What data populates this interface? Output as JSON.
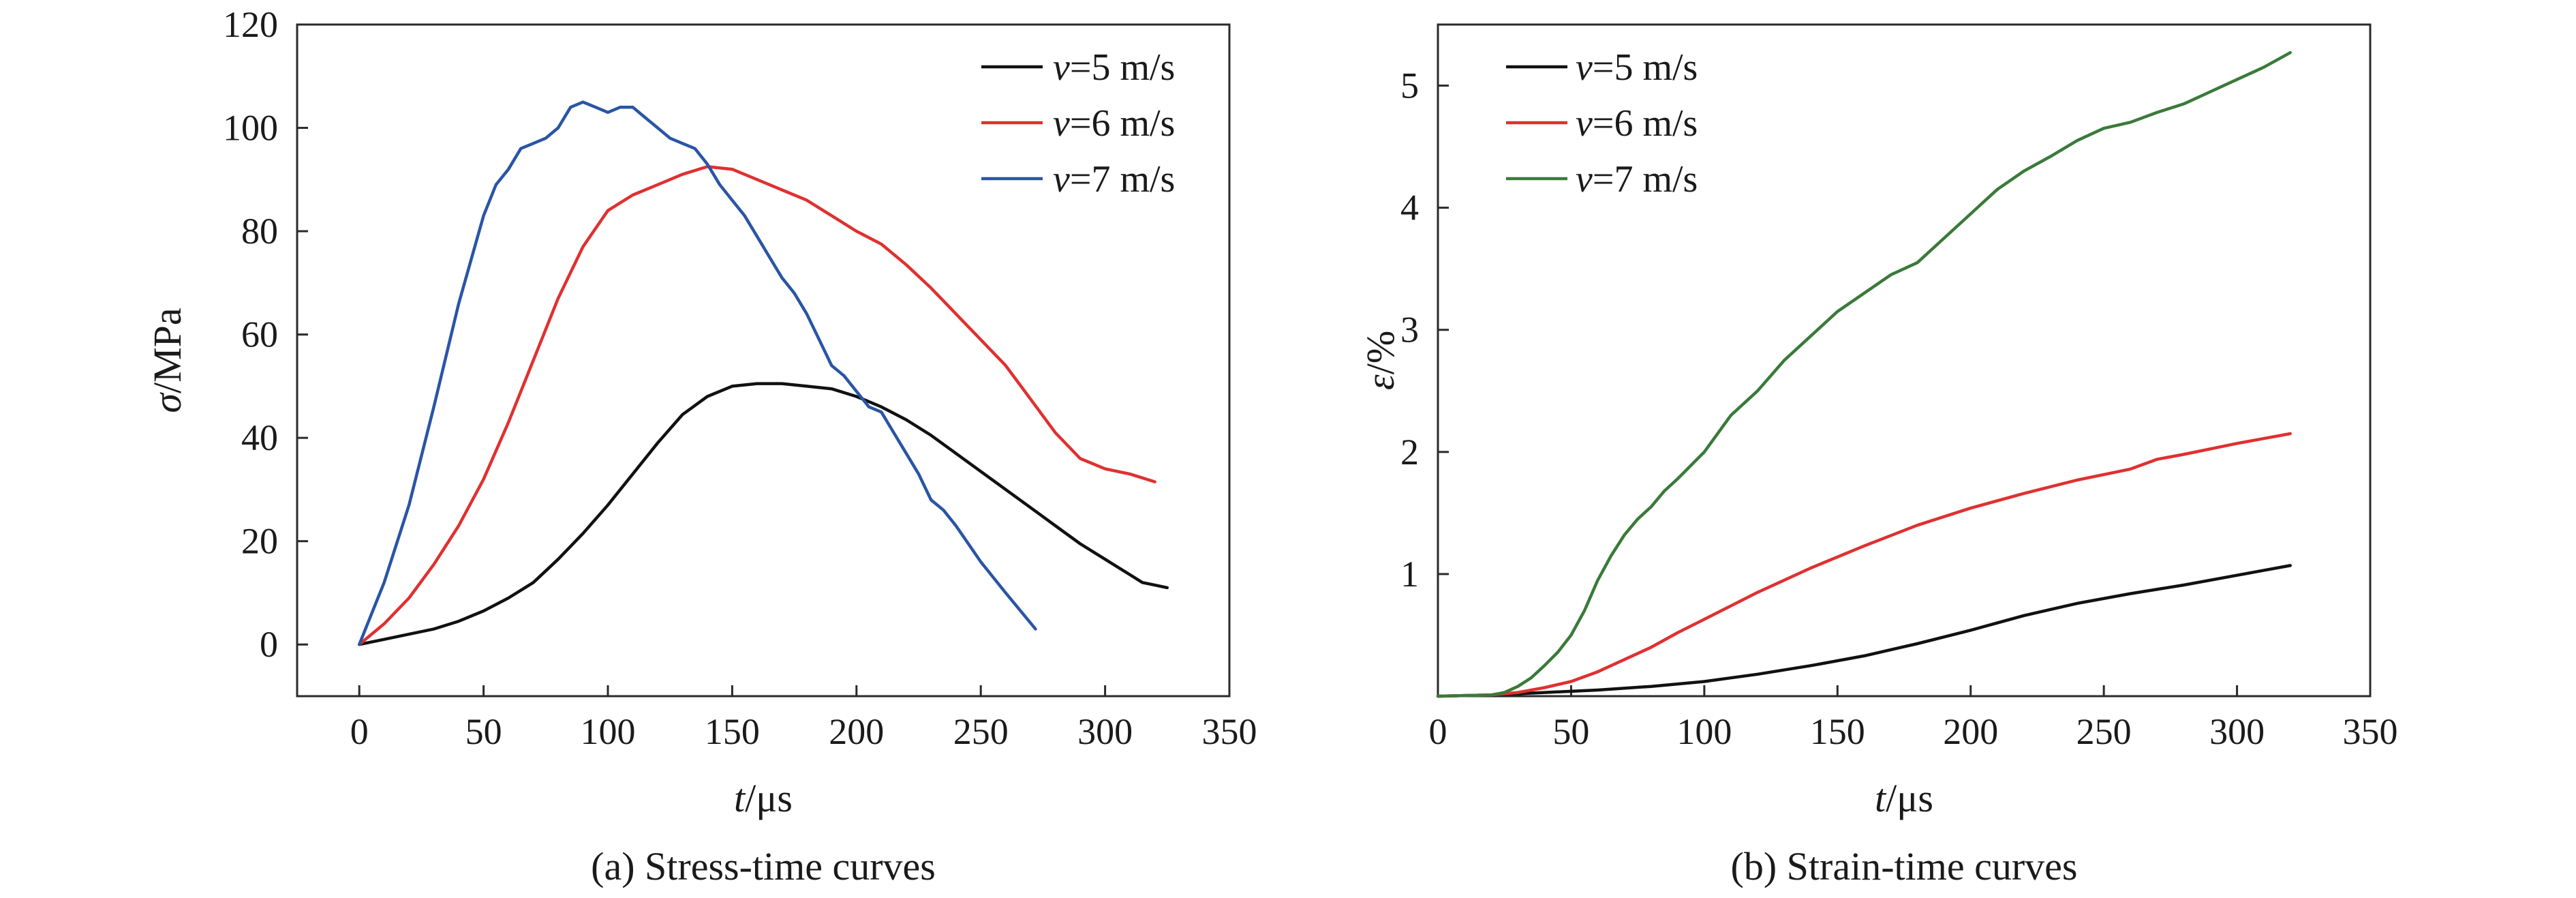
{
  "chart_data": [
    {
      "type": "line",
      "caption": "(a) Stress-time curves",
      "xlabel_var": "t",
      "xlabel_unit": "/μs",
      "ylabel_var": "σ",
      "ylabel_unit": "/MPa",
      "xlim": [
        -25,
        350
      ],
      "ylim": [
        -10,
        120
      ],
      "xticks": [
        0,
        50,
        100,
        150,
        200,
        250,
        300,
        350
      ],
      "yticks": [
        0,
        20,
        40,
        60,
        80,
        100,
        120
      ],
      "legend_position": "top-right",
      "series": [
        {
          "name_var": "v",
          "name_rest": "=5 m/s",
          "color": "#111111",
          "x": [
            0,
            10,
            20,
            30,
            40,
            50,
            60,
            70,
            80,
            90,
            100,
            110,
            120,
            130,
            140,
            150,
            160,
            170,
            180,
            190,
            200,
            210,
            220,
            230,
            240,
            250,
            260,
            270,
            280,
            290,
            300,
            310,
            315,
            320,
            325
          ],
          "y": [
            0,
            1,
            2,
            3,
            4.5,
            6.5,
            9,
            12,
            16.5,
            21.5,
            27,
            33,
            39,
            44.5,
            48,
            50,
            50.5,
            50.5,
            50,
            49.5,
            48,
            46,
            43.5,
            40.5,
            37,
            33.5,
            30,
            26.5,
            23,
            19.5,
            16.5,
            13.5,
            12,
            11.5,
            11
          ]
        },
        {
          "name_var": "v",
          "name_rest": "=6 m/s",
          "color": "#e03030",
          "x": [
            0,
            10,
            20,
            30,
            40,
            50,
            60,
            70,
            80,
            90,
            100,
            110,
            120,
            130,
            140,
            150,
            160,
            170,
            180,
            190,
            200,
            210,
            220,
            230,
            240,
            250,
            260,
            270,
            280,
            290,
            300,
            310,
            320
          ],
          "y": [
            0,
            4,
            9,
            15.5,
            23,
            32,
            43,
            55,
            67,
            77,
            84,
            87,
            89,
            91,
            92.5,
            92,
            90,
            88,
            86,
            83,
            80,
            77.5,
            73.5,
            69,
            64,
            59,
            54,
            47.5,
            41,
            36,
            34,
            33,
            31.5
          ]
        },
        {
          "name_var": "v",
          "name_rest": "=7 m/s",
          "color": "#2a55a5",
          "x": [
            0,
            5,
            10,
            20,
            30,
            40,
            50,
            55,
            60,
            65,
            70,
            75,
            80,
            85,
            90,
            95,
            100,
            105,
            110,
            115,
            120,
            125,
            130,
            135,
            140,
            145,
            150,
            155,
            160,
            165,
            170,
            175,
            180,
            185,
            190,
            195,
            200,
            205,
            210,
            215,
            220,
            225,
            230,
            235,
            240,
            250,
            260,
            272
          ],
          "y": [
            0,
            6,
            12,
            27,
            46,
            66,
            83,
            89,
            92,
            96,
            97,
            98,
            100,
            104,
            105,
            104,
            103,
            104,
            104,
            102,
            100,
            98,
            97,
            96,
            93,
            89,
            86,
            83,
            79,
            75,
            71,
            68,
            64,
            59,
            54,
            52,
            49,
            46,
            45,
            41,
            37,
            33,
            28,
            26,
            23,
            16,
            10,
            3
          ]
        }
      ]
    },
    {
      "type": "line",
      "caption": "(b) Strain-time curves",
      "xlabel_var": "t",
      "xlabel_unit": "/μs",
      "ylabel_var": "ε",
      "ylabel_unit": "/%",
      "xlim": [
        0,
        350
      ],
      "ylim": [
        0,
        5.5
      ],
      "xticks": [
        0,
        50,
        100,
        150,
        200,
        250,
        300,
        350
      ],
      "yticks": [
        1,
        2,
        3,
        4,
        5
      ],
      "legend_position": "top-left",
      "series": [
        {
          "name_var": "v",
          "name_rest": "=5 m/s",
          "color": "#111111",
          "x": [
            0,
            20,
            40,
            60,
            80,
            100,
            120,
            140,
            160,
            180,
            200,
            220,
            240,
            260,
            280,
            300,
            320
          ],
          "y": [
            0,
            0.01,
            0.03,
            0.05,
            0.08,
            0.12,
            0.18,
            0.25,
            0.33,
            0.43,
            0.54,
            0.66,
            0.76,
            0.84,
            0.91,
            0.99,
            1.07
          ]
        },
        {
          "name_var": "v",
          "name_rest": "=6 m/s",
          "color": "#e03030",
          "x": [
            0,
            20,
            30,
            40,
            50,
            60,
            70,
            80,
            90,
            100,
            120,
            140,
            160,
            180,
            200,
            220,
            240,
            260,
            270,
            280,
            300,
            320
          ],
          "y": [
            0,
            0.01,
            0.03,
            0.07,
            0.12,
            0.2,
            0.3,
            0.4,
            0.52,
            0.63,
            0.85,
            1.05,
            1.23,
            1.4,
            1.54,
            1.66,
            1.77,
            1.86,
            1.94,
            1.98,
            2.07,
            2.15
          ]
        },
        {
          "name_var": "v",
          "name_rest": "=7 m/s",
          "color": "#3a7a3a",
          "x": [
            0,
            20,
            25,
            30,
            35,
            40,
            45,
            50,
            55,
            60,
            65,
            70,
            75,
            80,
            85,
            90,
            100,
            110,
            120,
            130,
            140,
            150,
            160,
            170,
            180,
            190,
            200,
            210,
            220,
            230,
            240,
            250,
            260,
            270,
            280,
            290,
            300,
            310,
            320
          ],
          "y": [
            0,
            0.01,
            0.03,
            0.08,
            0.15,
            0.25,
            0.36,
            0.5,
            0.7,
            0.95,
            1.15,
            1.32,
            1.45,
            1.55,
            1.68,
            1.78,
            2.0,
            2.3,
            2.5,
            2.75,
            2.95,
            3.15,
            3.3,
            3.45,
            3.55,
            3.75,
            3.95,
            4.15,
            4.3,
            4.42,
            4.55,
            4.65,
            4.7,
            4.78,
            4.85,
            4.95,
            5.05,
            5.15,
            5.27
          ]
        }
      ]
    }
  ]
}
